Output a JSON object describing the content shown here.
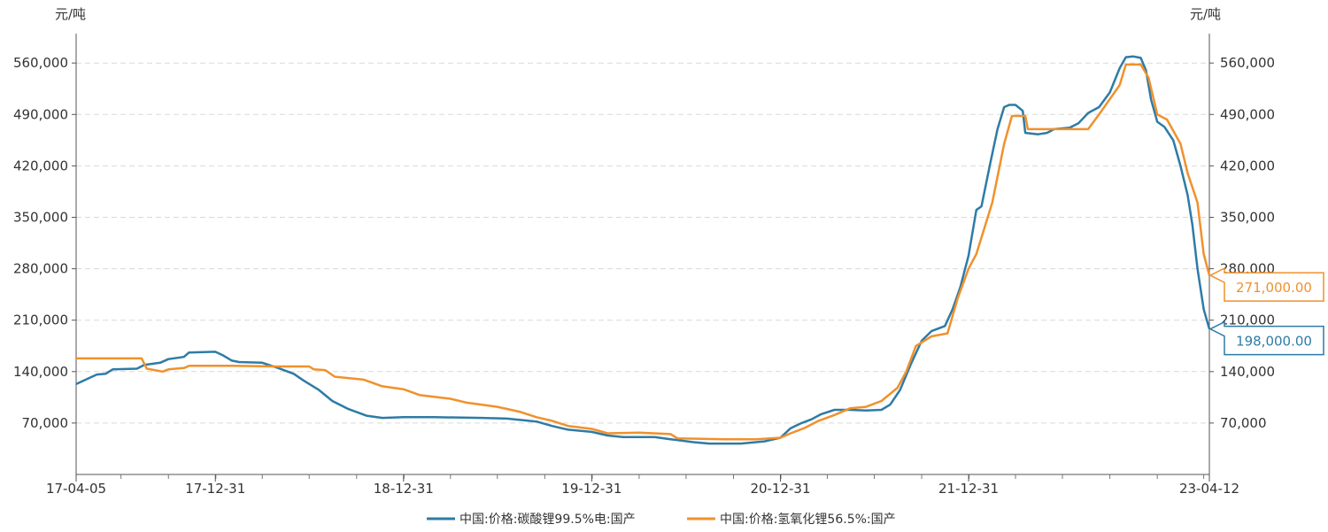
{
  "chart_data": {
    "type": "line",
    "y_unit_left": "元/吨",
    "y_unit_right": "元/吨",
    "ylim": [
      0,
      600000
    ],
    "y_ticks": [
      70000,
      140000,
      210000,
      280000,
      350000,
      420000,
      490000,
      560000
    ],
    "y_tick_labels": [
      "70,000",
      "140,000",
      "210,000",
      "280,000",
      "350,000",
      "420,000",
      "490,000",
      "560,000"
    ],
    "x_range": [
      "2017-04-05",
      "2023-04-12"
    ],
    "x_tick_labels": [
      {
        "date": "2017-04-05",
        "label": "17-04-05"
      },
      {
        "date": "2017-12-31",
        "label": "17-12-31"
      },
      {
        "date": "2018-12-31",
        "label": "18-12-31"
      },
      {
        "date": "2019-12-31",
        "label": "19-12-31"
      },
      {
        "date": "2020-12-31",
        "label": "20-12-31"
      },
      {
        "date": "2021-12-31",
        "label": "21-12-31"
      },
      {
        "date": "2023-04-12",
        "label": "23-04-12"
      }
    ],
    "grid": "horizontal-dashed",
    "legend_position": "bottom-center",
    "series": [
      {
        "name": "中国:价格:碳酸锂99.5%电:国产",
        "color": "#2e7ba6",
        "end_label": "198,000.00",
        "points": [
          [
            "2017-04-05",
            123000
          ],
          [
            "2017-05-15",
            136000
          ],
          [
            "2017-06-01",
            137000
          ],
          [
            "2017-06-15",
            143000
          ],
          [
            "2017-08-01",
            144000
          ],
          [
            "2017-08-15",
            149000
          ],
          [
            "2017-09-15",
            152000
          ],
          [
            "2017-10-01",
            157000
          ],
          [
            "2017-10-31",
            160000
          ],
          [
            "2017-11-10",
            166000
          ],
          [
            "2017-12-31",
            167000
          ],
          [
            "2018-01-15",
            162000
          ],
          [
            "2018-02-01",
            155000
          ],
          [
            "2018-02-15",
            153000
          ],
          [
            "2018-04-01",
            152000
          ],
          [
            "2018-05-01",
            145000
          ],
          [
            "2018-06-01",
            137000
          ],
          [
            "2018-06-20",
            128000
          ],
          [
            "2018-07-20",
            115000
          ],
          [
            "2018-08-15",
            100000
          ],
          [
            "2018-09-15",
            89000
          ],
          [
            "2018-10-20",
            80000
          ],
          [
            "2018-11-20",
            77000
          ],
          [
            "2018-12-31",
            78000
          ],
          [
            "2019-03-01",
            78000
          ],
          [
            "2019-06-01",
            77000
          ],
          [
            "2019-07-20",
            76000
          ],
          [
            "2019-09-15",
            72000
          ],
          [
            "2019-10-15",
            66000
          ],
          [
            "2019-11-15",
            61000
          ],
          [
            "2019-12-31",
            58000
          ],
          [
            "2020-01-31",
            53000
          ],
          [
            "2020-03-01",
            51000
          ],
          [
            "2020-05-01",
            51000
          ],
          [
            "2020-06-01",
            48000
          ],
          [
            "2020-07-15",
            44000
          ],
          [
            "2020-08-15",
            42000
          ],
          [
            "2020-10-15",
            42000
          ],
          [
            "2020-11-30",
            45000
          ],
          [
            "2020-12-31",
            50000
          ],
          [
            "2021-01-20",
            63000
          ],
          [
            "2021-02-10",
            70000
          ],
          [
            "2021-03-01",
            75000
          ],
          [
            "2021-03-20",
            82000
          ],
          [
            "2021-04-15",
            88000
          ],
          [
            "2021-05-15",
            88000
          ],
          [
            "2021-06-15",
            87000
          ],
          [
            "2021-07-15",
            88000
          ],
          [
            "2021-08-01",
            95000
          ],
          [
            "2021-08-20",
            115000
          ],
          [
            "2021-09-10",
            150000
          ],
          [
            "2021-10-01",
            182000
          ],
          [
            "2021-10-20",
            195000
          ],
          [
            "2021-11-15",
            202000
          ],
          [
            "2021-11-30",
            225000
          ],
          [
            "2021-12-15",
            255000
          ],
          [
            "2021-12-31",
            298000
          ],
          [
            "2022-01-15",
            360000
          ],
          [
            "2022-01-25",
            365000
          ],
          [
            "2022-02-10",
            420000
          ],
          [
            "2022-02-25",
            470000
          ],
          [
            "2022-03-10",
            500000
          ],
          [
            "2022-03-20",
            503000
          ],
          [
            "2022-04-01",
            503000
          ],
          [
            "2022-04-15",
            495000
          ],
          [
            "2022-04-20",
            465000
          ],
          [
            "2022-05-15",
            463000
          ],
          [
            "2022-06-01",
            465000
          ],
          [
            "2022-06-15",
            470000
          ],
          [
            "2022-07-15",
            472000
          ],
          [
            "2022-08-01",
            478000
          ],
          [
            "2022-08-20",
            492000
          ],
          [
            "2022-09-10",
            500000
          ],
          [
            "2022-10-01",
            520000
          ],
          [
            "2022-10-20",
            553000
          ],
          [
            "2022-11-01",
            568000
          ],
          [
            "2022-11-15",
            569000
          ],
          [
            "2022-11-30",
            567000
          ],
          [
            "2022-12-10",
            550000
          ],
          [
            "2022-12-20",
            510000
          ],
          [
            "2023-01-01",
            480000
          ],
          [
            "2023-01-15",
            473000
          ],
          [
            "2023-02-01",
            455000
          ],
          [
            "2023-02-15",
            420000
          ],
          [
            "2023-03-01",
            380000
          ],
          [
            "2023-03-10",
            340000
          ],
          [
            "2023-03-20",
            280000
          ],
          [
            "2023-04-01",
            225000
          ],
          [
            "2023-04-12",
            198000
          ]
        ]
      },
      {
        "name": "中国:价格:氢氧化锂56.5%:国产",
        "color": "#f0912c",
        "end_label": "271,000.00",
        "points": [
          [
            "2017-04-05",
            158000
          ],
          [
            "2017-08-10",
            158000
          ],
          [
            "2017-08-20",
            144000
          ],
          [
            "2017-09-20",
            140000
          ],
          [
            "2017-10-01",
            143000
          ],
          [
            "2017-11-01",
            145000
          ],
          [
            "2017-11-10",
            148000
          ],
          [
            "2018-02-01",
            148000
          ],
          [
            "2018-05-01",
            147000
          ],
          [
            "2018-07-01",
            147000
          ],
          [
            "2018-07-10",
            143000
          ],
          [
            "2018-08-01",
            142000
          ],
          [
            "2018-08-20",
            133000
          ],
          [
            "2018-10-15",
            129000
          ],
          [
            "2018-11-20",
            120000
          ],
          [
            "2018-12-31",
            116000
          ],
          [
            "2019-02-01",
            108000
          ],
          [
            "2019-04-01",
            103000
          ],
          [
            "2019-05-01",
            98000
          ],
          [
            "2019-07-01",
            92000
          ],
          [
            "2019-08-15",
            85000
          ],
          [
            "2019-09-15",
            78000
          ],
          [
            "2019-10-15",
            73000
          ],
          [
            "2019-11-15",
            66000
          ],
          [
            "2019-12-31",
            62000
          ],
          [
            "2020-01-31",
            56000
          ],
          [
            "2020-04-01",
            57000
          ],
          [
            "2020-06-01",
            55000
          ],
          [
            "2020-06-15",
            49000
          ],
          [
            "2020-09-15",
            48000
          ],
          [
            "2020-11-15",
            48000
          ],
          [
            "2020-12-31",
            50000
          ],
          [
            "2021-01-20",
            56000
          ],
          [
            "2021-02-15",
            63000
          ],
          [
            "2021-03-15",
            73000
          ],
          [
            "2021-04-15",
            81000
          ],
          [
            "2021-05-15",
            90000
          ],
          [
            "2021-06-15",
            92000
          ],
          [
            "2021-07-15",
            100000
          ],
          [
            "2021-08-15",
            118000
          ],
          [
            "2021-09-01",
            140000
          ],
          [
            "2021-09-20",
            175000
          ],
          [
            "2021-10-20",
            188000
          ],
          [
            "2021-11-20",
            192000
          ],
          [
            "2021-12-10",
            240000
          ],
          [
            "2021-12-31",
            280000
          ],
          [
            "2022-01-15",
            300000
          ],
          [
            "2022-02-15",
            370000
          ],
          [
            "2022-03-10",
            450000
          ],
          [
            "2022-03-25",
            488000
          ],
          [
            "2022-04-20",
            488000
          ],
          [
            "2022-04-25",
            470000
          ],
          [
            "2022-08-20",
            470000
          ],
          [
            "2022-09-10",
            490000
          ],
          [
            "2022-10-20",
            530000
          ],
          [
            "2022-11-01",
            558000
          ],
          [
            "2022-11-30",
            558000
          ],
          [
            "2022-12-15",
            540000
          ],
          [
            "2023-01-01",
            490000
          ],
          [
            "2023-01-20",
            483000
          ],
          [
            "2023-02-15",
            450000
          ],
          [
            "2023-03-01",
            410000
          ],
          [
            "2023-03-20",
            370000
          ],
          [
            "2023-04-01",
            300000
          ],
          [
            "2023-04-12",
            271000
          ]
        ]
      }
    ]
  }
}
